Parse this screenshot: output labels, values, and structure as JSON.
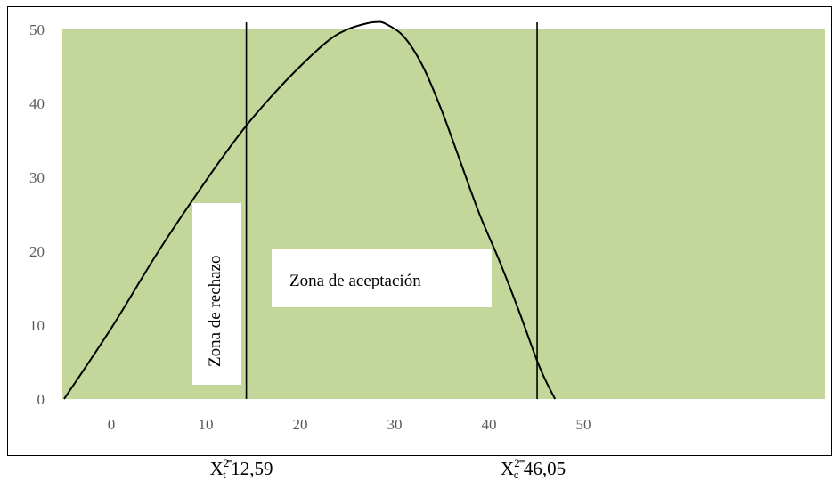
{
  "chart_data": {
    "type": "area",
    "background_fill": "#c4d79b",
    "curve_color": "#000000",
    "y_ticks": [
      "0",
      "10",
      "20",
      "30",
      "40",
      "50"
    ],
    "x_ticks": [
      "0",
      "10",
      "20",
      "30",
      "40",
      "50"
    ],
    "ylim": [
      0,
      50
    ],
    "grid": false,
    "curve": {
      "x": [
        -5,
        0,
        5,
        10,
        14,
        17,
        20,
        23,
        25,
        27,
        28,
        29,
        31,
        33,
        35,
        37,
        39,
        41,
        43,
        45,
        46,
        47
      ],
      "y": [
        0,
        9.6,
        20,
        29.5,
        36.5,
        41,
        45,
        48.5,
        50,
        50.8,
        51,
        50.8,
        49,
        45,
        39,
        32,
        25,
        19,
        12.5,
        5.5,
        2.5,
        0
      ]
    },
    "vertical_lines": [
      {
        "x": 14.3,
        "label": {
          "base": "X",
          "sup": "2",
          "sub": "t",
          "eq": "=",
          "value": "12,59"
        }
      },
      {
        "x": 45.1,
        "label": {
          "base": "X",
          "sup": "2",
          "sub": "c",
          "eq": "=",
          "value": "46,05"
        }
      }
    ],
    "annotations": {
      "rejection": "Zona de rechazo",
      "acceptance": "Zona de aceptación"
    }
  }
}
